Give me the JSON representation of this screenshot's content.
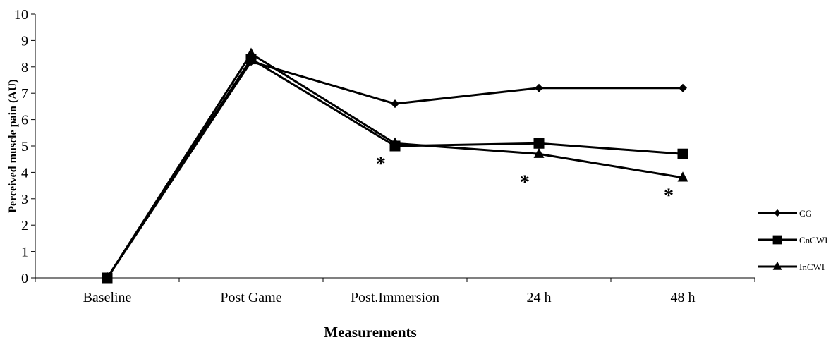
{
  "chart_data": {
    "type": "line",
    "title": "",
    "xlabel": "Measurements",
    "ylabel": "Perceived muscle pain (AU)",
    "ylim": [
      0,
      10
    ],
    "yticks": [
      "0",
      "1",
      "2",
      "3",
      "4",
      "5",
      "6",
      "7",
      "8",
      "9",
      "10"
    ],
    "categories": [
      "Baseline",
      "Post Game",
      "Post.Immersion",
      "24 h",
      "48 h"
    ],
    "grid": false,
    "legend_position": "right",
    "series": [
      {
        "name": "CG",
        "marker": "diamond",
        "color": "#000000",
        "values": [
          0,
          8.2,
          6.6,
          7.2,
          7.2
        ]
      },
      {
        "name": "CnCWI",
        "marker": "square",
        "color": "#000000",
        "values": [
          0,
          8.3,
          5.0,
          5.1,
          4.7
        ]
      },
      {
        "name": "InCWI",
        "marker": "triangle",
        "color": "#000000",
        "values": [
          0,
          8.5,
          5.1,
          4.7,
          3.8
        ]
      }
    ],
    "annotations": [
      {
        "text": "*",
        "category": "Post.Immersion",
        "y": 4.4
      },
      {
        "text": "*",
        "category": "24 h",
        "y": 3.7
      },
      {
        "text": "*",
        "category": "48 h",
        "y": 3.2
      }
    ]
  }
}
